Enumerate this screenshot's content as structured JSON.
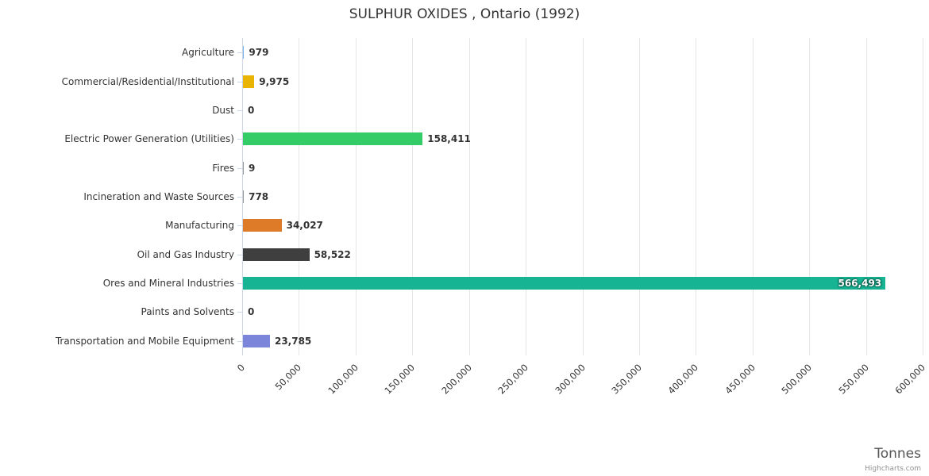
{
  "chart_data": {
    "type": "bar",
    "title": "SULPHUR OXIDES , Ontario (1992)",
    "categories": [
      "Agriculture",
      "Commercial/Residential/Institutional",
      "Dust",
      "Electric Power Generation (Utilities)",
      "Fires",
      "Incineration and Waste Sources",
      "Manufacturing",
      "Oil and Gas Industry",
      "Ores and Mineral Industries",
      "Paints and Solvents",
      "Transportation and Mobile Equipment"
    ],
    "values": [
      979,
      9975,
      0,
      158411,
      9,
      778,
      34027,
      58522,
      566493,
      0,
      23785
    ],
    "value_labels": [
      "979",
      "9,975",
      "0",
      "158,411",
      "9",
      "778",
      "34,027",
      "58,522",
      "566,493",
      "0",
      "23,785"
    ],
    "bar_colors": [
      "#7cb5ec",
      "#eab404",
      "#999999",
      "#33cc66",
      "#999999",
      "#999999",
      "#de7b28",
      "#3f3f3f",
      "#16b493",
      "#999999",
      "#7b86db"
    ],
    "label_inside": [
      false,
      false,
      false,
      false,
      false,
      false,
      false,
      false,
      true,
      false,
      false
    ],
    "xlim": [
      0,
      600000
    ],
    "tick_interval": 50000,
    "x_ticks": [
      "0",
      "50,000",
      "100,000",
      "150,000",
      "200,000",
      "250,000",
      "300,000",
      "350,000",
      "400,000",
      "450,000",
      "500,000",
      "550,000",
      "600,000"
    ],
    "xlabel": "Tonnes",
    "ylabel": "",
    "grid": true,
    "legend": "none",
    "credits": "Highcharts.com"
  }
}
